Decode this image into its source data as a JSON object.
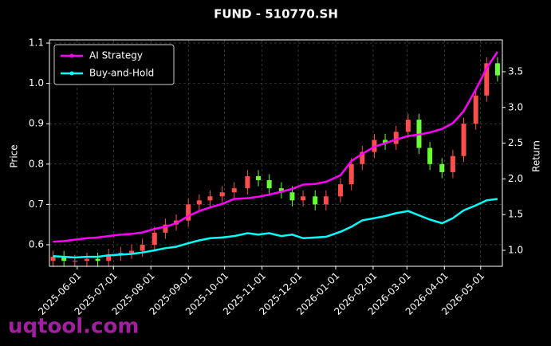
{
  "chart_data": {
    "type": "candlestick",
    "title": "FUND - 510770.SH",
    "y_label": "Price",
    "y2_label": "Return",
    "x": [
      "2025-05-12",
      "2025-05-21",
      "2025-05-30",
      "2025-06-09",
      "2025-06-18",
      "2025-06-27",
      "2025-07-07",
      "2025-07-16",
      "2025-07-25",
      "2025-08-04",
      "2025-08-13",
      "2025-08-22",
      "2025-09-01",
      "2025-09-10",
      "2025-09-19",
      "2025-09-29",
      "2025-10-09",
      "2025-10-20",
      "2025-10-29",
      "2025-11-07",
      "2025-11-17",
      "2025-11-26",
      "2025-12-05",
      "2025-12-15",
      "2025-12-24",
      "2026-01-05",
      "2026-01-14",
      "2026-01-23",
      "2026-02-02",
      "2026-02-11",
      "2026-02-20",
      "2026-03-02",
      "2026-03-11",
      "2026-03-20",
      "2026-03-30",
      "2026-04-08",
      "2026-04-17",
      "2026-04-27",
      "2026-05-06",
      "2026-05-15"
    ],
    "open": [
      0.56,
      0.57,
      0.56,
      0.56,
      0.565,
      0.56,
      0.575,
      0.58,
      0.585,
      0.6,
      0.63,
      0.65,
      0.66,
      0.7,
      0.71,
      0.72,
      0.73,
      0.74,
      0.77,
      0.76,
      0.74,
      0.73,
      0.71,
      0.72,
      0.7,
      0.72,
      0.75,
      0.8,
      0.83,
      0.86,
      0.85,
      0.88,
      0.91,
      0.84,
      0.8,
      0.78,
      0.82,
      0.9,
      0.97,
      1.05
    ],
    "high": [
      0.585,
      0.585,
      0.575,
      0.58,
      0.58,
      0.59,
      0.595,
      0.6,
      0.615,
      0.645,
      0.665,
      0.675,
      0.715,
      0.725,
      0.735,
      0.745,
      0.755,
      0.785,
      0.785,
      0.775,
      0.755,
      0.745,
      0.735,
      0.735,
      0.735,
      0.765,
      0.815,
      0.845,
      0.875,
      0.875,
      0.895,
      0.925,
      0.925,
      0.855,
      0.815,
      0.835,
      0.915,
      0.985,
      1.065,
      1.065
    ],
    "low": [
      0.545,
      0.545,
      0.545,
      0.545,
      0.545,
      0.545,
      0.56,
      0.565,
      0.57,
      0.585,
      0.615,
      0.635,
      0.645,
      0.685,
      0.695,
      0.705,
      0.715,
      0.725,
      0.745,
      0.725,
      0.715,
      0.695,
      0.695,
      0.685,
      0.685,
      0.705,
      0.735,
      0.785,
      0.815,
      0.835,
      0.835,
      0.865,
      0.825,
      0.785,
      0.765,
      0.765,
      0.805,
      0.885,
      0.955,
      1.005
    ],
    "close": [
      0.57,
      0.56,
      0.56,
      0.565,
      0.56,
      0.575,
      0.58,
      0.585,
      0.6,
      0.63,
      0.65,
      0.66,
      0.7,
      0.71,
      0.72,
      0.73,
      0.74,
      0.77,
      0.76,
      0.74,
      0.73,
      0.71,
      0.72,
      0.7,
      0.72,
      0.75,
      0.8,
      0.83,
      0.86,
      0.85,
      0.88,
      0.91,
      0.84,
      0.8,
      0.78,
      0.82,
      0.9,
      0.97,
      1.05,
      1.02
    ],
    "up_color": "#ff4d4d",
    "down_color": "#66ff33",
    "series": [
      {
        "name": "AI Strategy",
        "color": "#ff00ff",
        "axis": "y2",
        "values": [
          1.12,
          1.13,
          1.15,
          1.17,
          1.18,
          1.2,
          1.22,
          1.23,
          1.25,
          1.3,
          1.33,
          1.38,
          1.48,
          1.55,
          1.6,
          1.65,
          1.72,
          1.73,
          1.75,
          1.78,
          1.82,
          1.86,
          1.92,
          1.93,
          1.96,
          2.05,
          2.25,
          2.35,
          2.45,
          2.5,
          2.55,
          2.6,
          2.62,
          2.65,
          2.7,
          2.78,
          2.95,
          3.25,
          3.55,
          3.78
        ]
      },
      {
        "name": "Buy-and-Hold",
        "color": "#00ffff",
        "axis": "y2",
        "values": [
          0.92,
          0.91,
          0.9,
          0.91,
          0.91,
          0.93,
          0.94,
          0.95,
          0.97,
          1.0,
          1.03,
          1.05,
          1.1,
          1.14,
          1.17,
          1.18,
          1.2,
          1.24,
          1.22,
          1.24,
          1.2,
          1.22,
          1.17,
          1.18,
          1.19,
          1.26,
          1.33,
          1.42,
          1.45,
          1.48,
          1.52,
          1.55,
          1.49,
          1.43,
          1.38,
          1.45,
          1.56,
          1.63,
          1.7,
          1.72
        ]
      }
    ],
    "xlim": [
      "2025-05-09",
      "2026-05-19"
    ],
    "xticks": [
      "2025-06-01",
      "2025-07-01",
      "2025-08-01",
      "2025-09-01",
      "2025-10-01",
      "2025-11-01",
      "2025-12-01",
      "2026-01-01",
      "2026-02-01",
      "2026-03-01",
      "2026-04-01",
      "2026-05-01"
    ],
    "ylim": [
      0.5466,
      1.108
    ],
    "yticks": [
      0.6,
      0.7,
      0.8,
      0.9,
      {
        "value": 1,
        "label": "1.0"
      },
      1.1
    ],
    "y2lim": [
      0.777,
      3.946
    ],
    "y2ticks": [
      {
        "value": 1,
        "label": "1.0"
      },
      1.5,
      {
        "value": 2,
        "label": "2.0"
      },
      2.5,
      {
        "value": 3,
        "label": "3.0"
      },
      3.5
    ],
    "grid": true,
    "legend": "upper left"
  },
  "watermark": "uqtool.com"
}
